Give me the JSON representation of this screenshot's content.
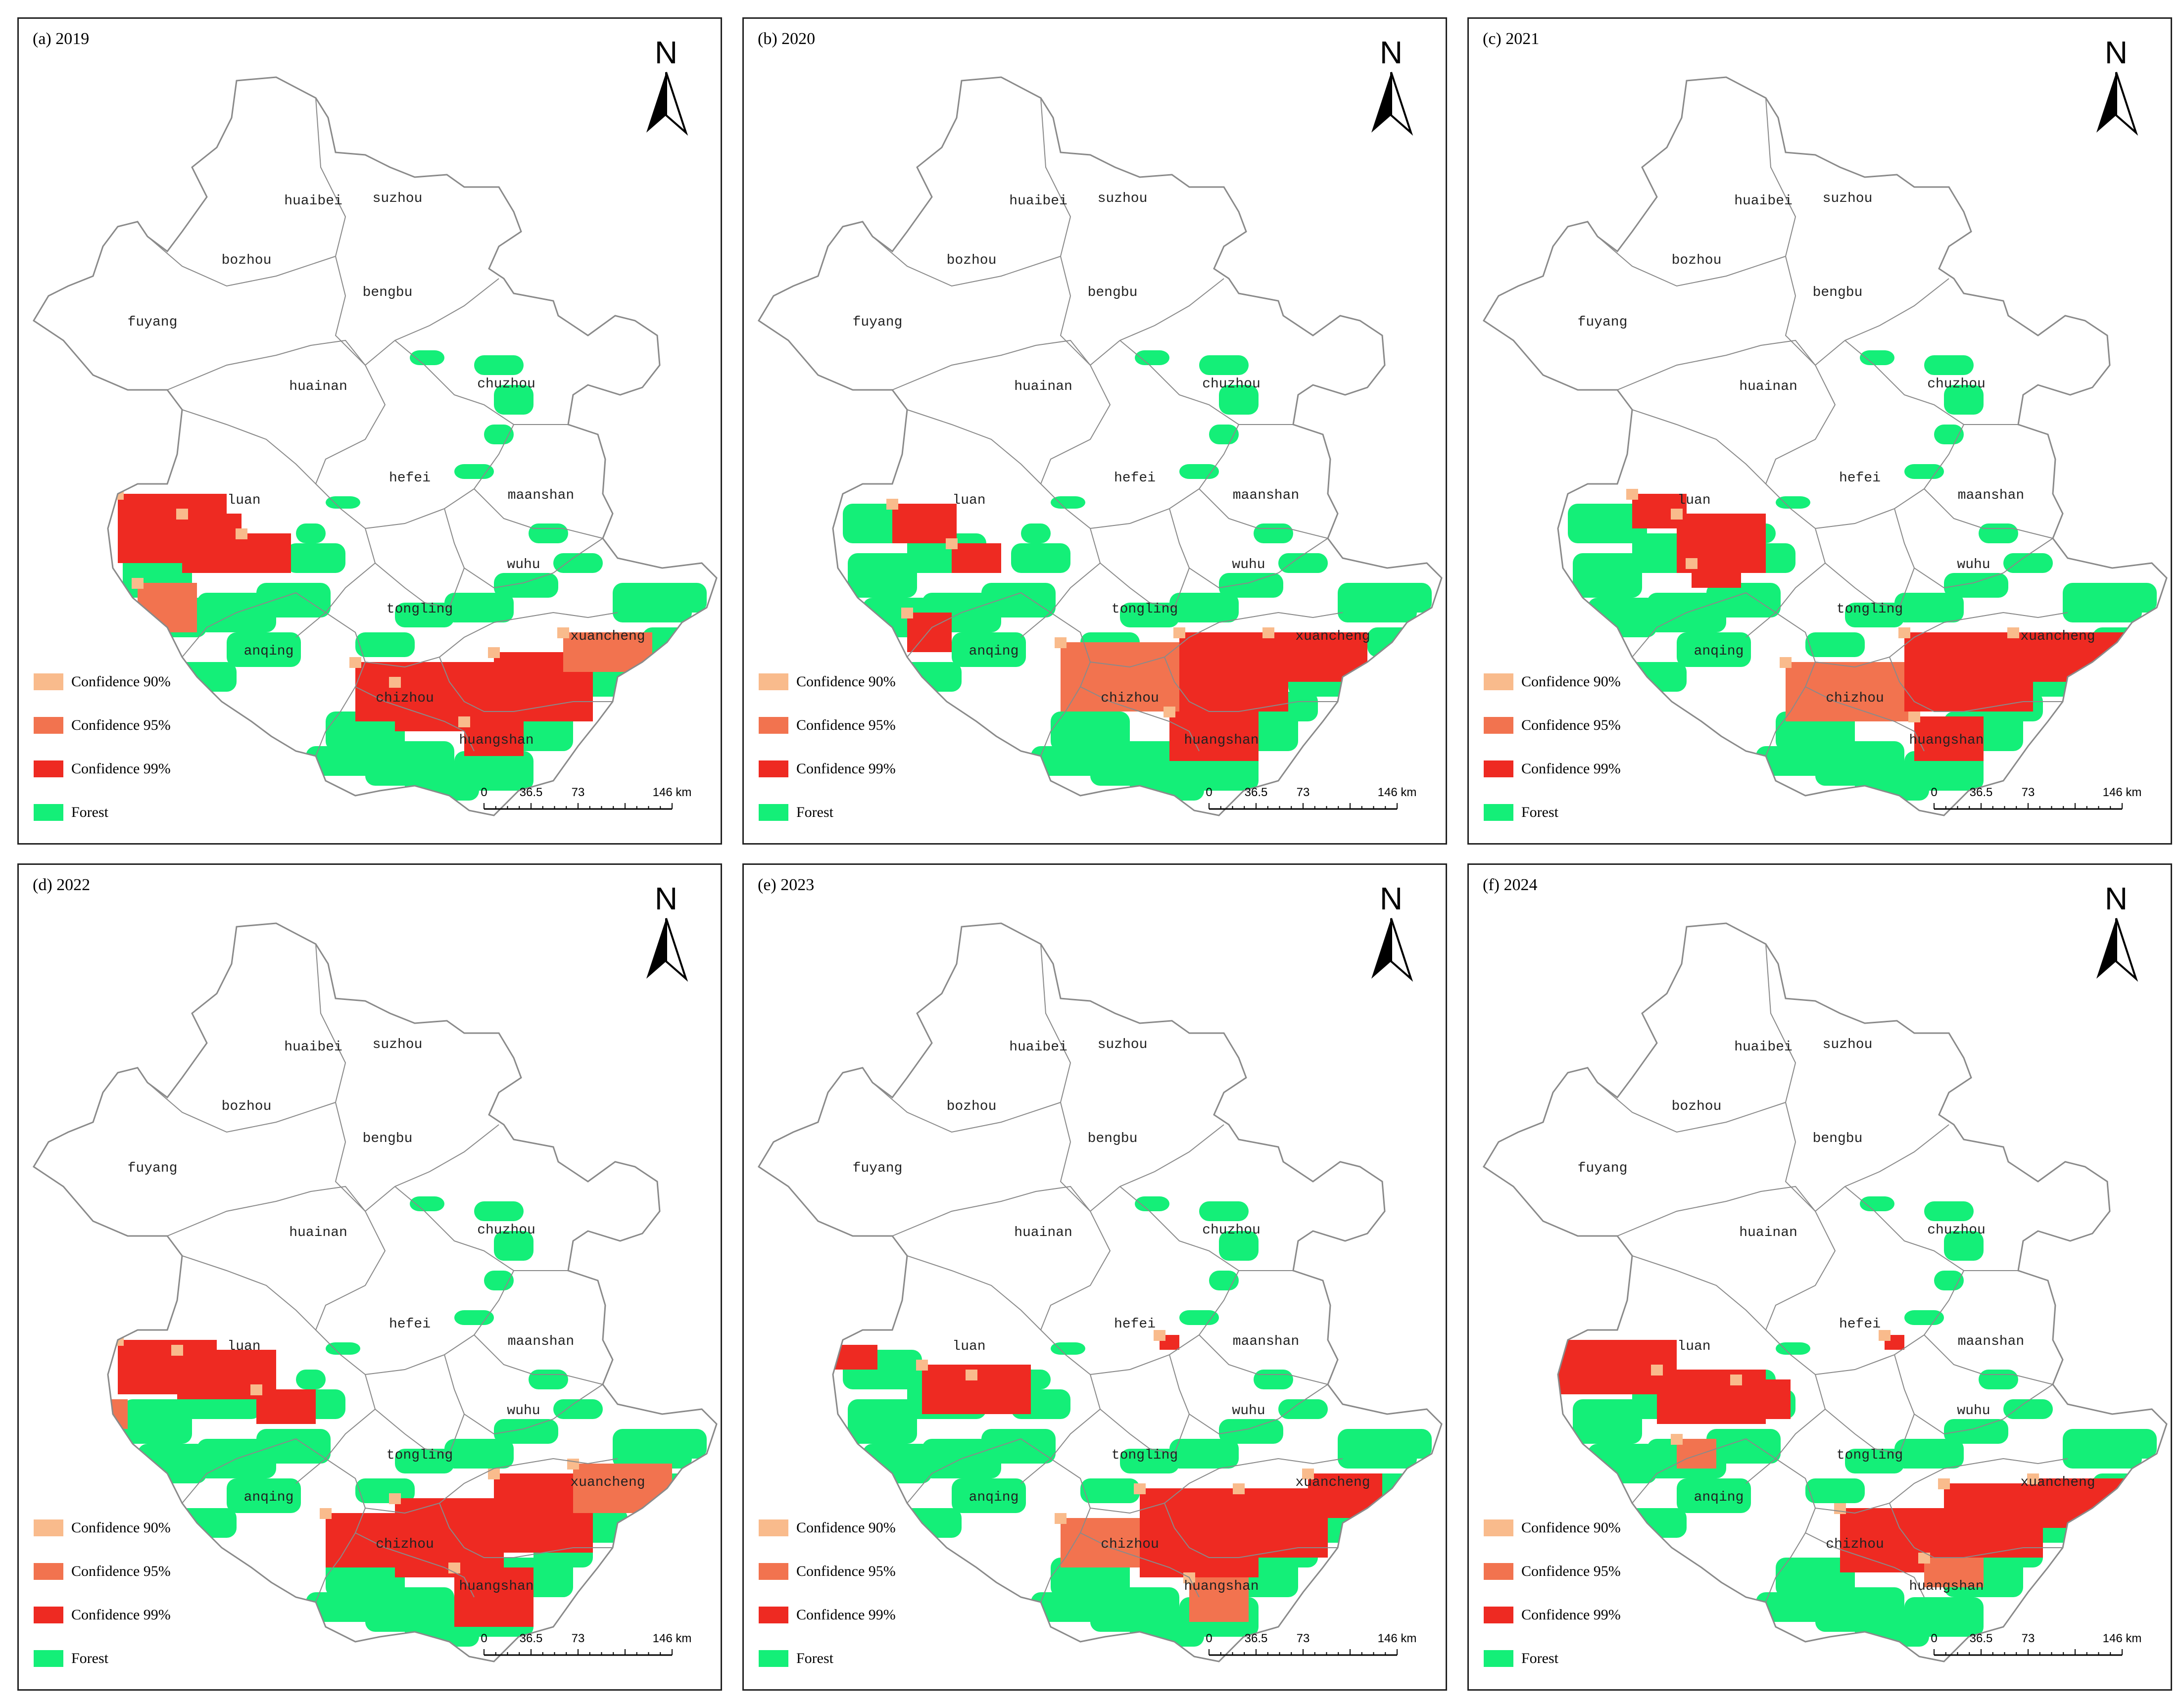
{
  "panels": [
    {
      "title": "(a) 2019"
    },
    {
      "title": "(b) 2020"
    },
    {
      "title": "(c) 2021"
    },
    {
      "title": "(d) 2022"
    },
    {
      "title": "(e) 2023"
    },
    {
      "title": "(f) 2024"
    }
  ],
  "cities": {
    "huaibei": "huaibei",
    "suzhou": "suzhou",
    "bozhou": "bozhou",
    "bengbu": "bengbu",
    "fuyang": "fuyang",
    "huainan": "huainan",
    "chuzhou": "chuzhou",
    "hefei": "hefei",
    "luan": "luan",
    "maanshan": "maanshan",
    "wuhu": "wuhu",
    "tongling": "tongling",
    "anqing": "anqing",
    "xuancheng": "xuancheng",
    "chizhou": "chizhou",
    "huangshan": "huangshan"
  },
  "legend": {
    "conf90": "Confidence 90%",
    "conf95": "Confidence 95%",
    "conf99": "Confidence 99%",
    "forest": "Forest"
  },
  "north_label": "N",
  "scale": {
    "t0": "0",
    "t1": "36.5",
    "t2": "73",
    "t3": "146 km"
  },
  "colors": {
    "conf90": "#f9bb8c",
    "conf95": "#f2734f",
    "conf99": "#ee2a22",
    "forest": "#14ef78",
    "boundary": "#8a8a8a"
  },
  "hotspots_by_year": {
    "2019": [
      "luan",
      "anqing",
      "chizhou",
      "huangshan",
      "xuancheng"
    ],
    "2020": [
      "luan",
      "anqing",
      "chizhou",
      "huangshan",
      "xuancheng"
    ],
    "2021": [
      "luan",
      "chizhou",
      "huangshan",
      "xuancheng"
    ],
    "2022": [
      "luan",
      "chizhou",
      "huangshan",
      "xuancheng"
    ],
    "2023": [
      "luan",
      "hefei",
      "chizhou",
      "huangshan",
      "xuancheng"
    ],
    "2024": [
      "luan",
      "hefei",
      "anqing",
      "chizhou",
      "huangshan",
      "xuancheng"
    ]
  }
}
